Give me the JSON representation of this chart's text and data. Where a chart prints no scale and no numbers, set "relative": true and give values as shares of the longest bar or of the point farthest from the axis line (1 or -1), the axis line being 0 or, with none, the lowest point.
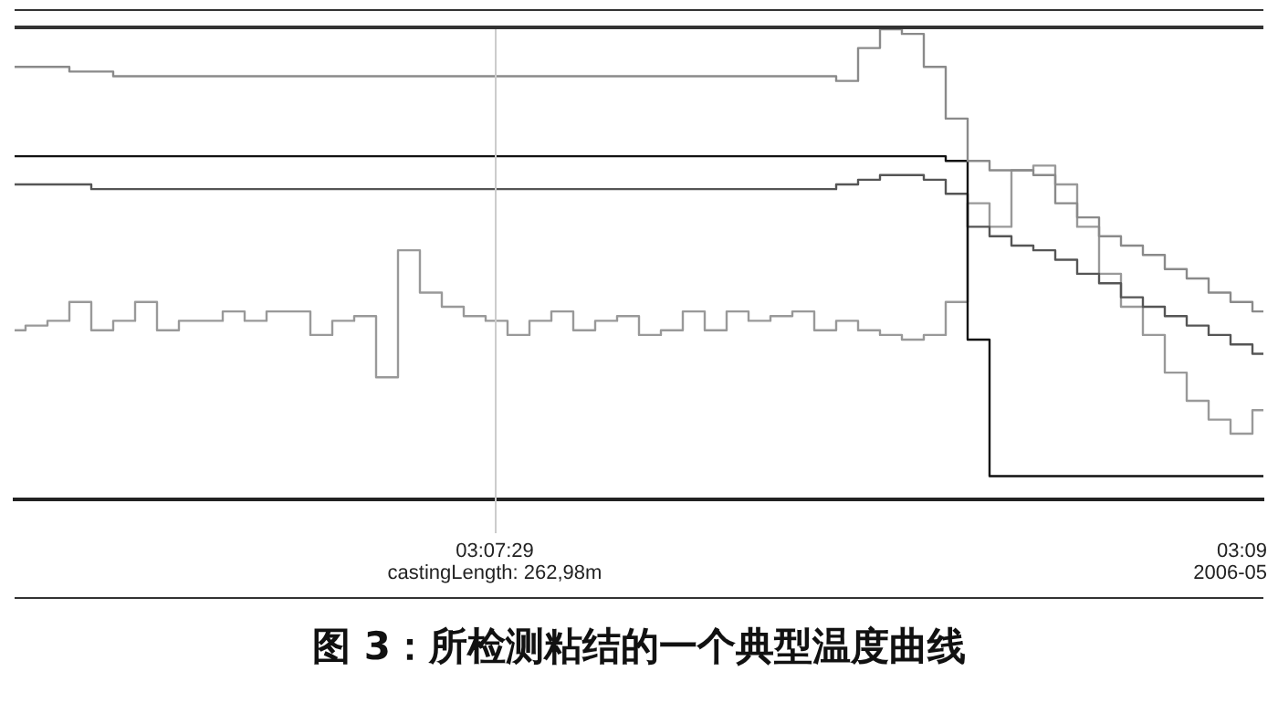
{
  "chart_data": {
    "type": "step",
    "title": "图 3：所检测粘结的一个典型温度曲线",
    "relative": true,
    "legend": false,
    "grid": false,
    "categories": [
      null,
      null,
      null,
      null,
      null,
      null,
      null,
      null,
      null,
      null,
      null,
      null,
      null,
      null,
      null,
      null,
      null,
      null,
      null,
      null,
      null,
      null,
      null,
      null,
      null,
      null,
      null,
      null,
      null,
      null,
      null,
      null,
      null,
      null,
      null,
      null,
      null,
      null,
      null,
      null,
      null,
      null,
      null,
      null,
      null,
      null,
      null,
      null,
      null,
      null,
      null,
      null,
      null,
      null,
      null,
      null,
      null,
      null
    ],
    "series": [
      {
        "color": "#8a8a8a",
        "values": [
          0.92,
          0.92,
          0.92,
          0.91,
          0.91,
          0.9,
          0.9,
          0.9,
          0.9,
          0.9,
          0.9,
          0.9,
          0.9,
          0.9,
          0.9,
          0.9,
          0.9,
          0.9,
          0.9,
          0.9,
          0.9,
          0.9,
          0.9,
          0.9,
          0.9,
          0.9,
          0.9,
          0.9,
          0.9,
          0.9,
          0.9,
          0.9,
          0.9,
          0.9,
          0.9,
          0.9,
          0.9,
          0.9,
          0.89,
          0.96,
          1,
          0.99,
          0.92,
          0.81,
          0.72,
          0.7,
          0.7,
          0.69,
          0.63,
          0.6,
          0.56,
          0.54,
          0.52,
          0.49,
          0.47,
          0.44,
          0.42,
          0.4
        ]
      },
      {
        "color": "#111111",
        "values": [
          0.73,
          0.73,
          0.73,
          0.73,
          0.73,
          0.73,
          0.73,
          0.73,
          0.73,
          0.73,
          0.73,
          0.73,
          0.73,
          0.73,
          0.73,
          0.73,
          0.73,
          0.73,
          0.73,
          0.73,
          0.73,
          0.73,
          0.73,
          0.73,
          0.73,
          0.73,
          0.73,
          0.73,
          0.73,
          0.73,
          0.73,
          0.73,
          0.73,
          0.73,
          0.73,
          0.73,
          0.73,
          0.73,
          0.73,
          0.73,
          0.73,
          0.73,
          0.73,
          0.72,
          0.34,
          0.05,
          0.05,
          0.05,
          0.05,
          0.05,
          0.05,
          0.05,
          0.05,
          0.05,
          0.05,
          0.05,
          0.05,
          0.05
        ]
      },
      {
        "color": "#555555",
        "values": [
          0.67,
          0.67,
          0.67,
          0.67,
          0.66,
          0.66,
          0.66,
          0.66,
          0.66,
          0.66,
          0.66,
          0.66,
          0.66,
          0.66,
          0.66,
          0.66,
          0.66,
          0.66,
          0.66,
          0.66,
          0.66,
          0.66,
          0.66,
          0.66,
          0.66,
          0.66,
          0.66,
          0.66,
          0.66,
          0.66,
          0.66,
          0.66,
          0.66,
          0.66,
          0.66,
          0.66,
          0.66,
          0.66,
          0.67,
          0.68,
          0.69,
          0.69,
          0.68,
          0.65,
          0.58,
          0.56,
          0.54,
          0.53,
          0.51,
          0.48,
          0.46,
          0.43,
          0.41,
          0.39,
          0.37,
          0.35,
          0.33,
          0.31
        ]
      },
      {
        "color": "#999999",
        "values": [
          0.36,
          0.37,
          0.38,
          0.42,
          0.36,
          0.38,
          0.42,
          0.36,
          0.38,
          0.38,
          0.4,
          0.38,
          0.4,
          0.4,
          0.35,
          0.38,
          0.39,
          0.26,
          0.53,
          0.44,
          0.41,
          0.39,
          0.38,
          0.35,
          0.38,
          0.4,
          0.36,
          0.38,
          0.39,
          0.35,
          0.36,
          0.4,
          0.36,
          0.4,
          0.38,
          0.39,
          0.4,
          0.36,
          0.38,
          0.36,
          0.35,
          0.34,
          0.35,
          0.42,
          0.63,
          0.58,
          0.7,
          0.71,
          0.67,
          0.58,
          0.48,
          0.41,
          0.35,
          0.27,
          0.21,
          0.17,
          0.14,
          0.19
        ]
      }
    ],
    "annotations": [
      "03:07:29",
      "castingLength: 262,98m",
      "03:09",
      "2006-05"
    ]
  }
}
